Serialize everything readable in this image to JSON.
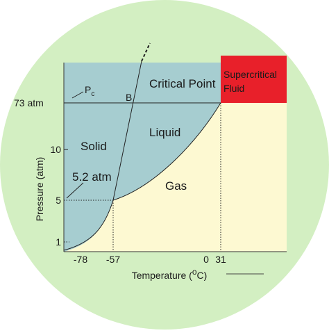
{
  "diagram": {
    "regions": {
      "solid": "Solid",
      "liquid": "Liquid",
      "gas": "Gas",
      "supercritical_line1": "Supercritical",
      "supercritical_line2": "Fluid"
    },
    "annotations": {
      "critical_point": "Critical Point",
      "b": "B",
      "pc_main": "P",
      "pc_sub": "c",
      "triple_pressure": "5.2 atm",
      "critical_pressure": "73 atm"
    },
    "y_axis": {
      "label": "Pressure (atm)",
      "ticks": [
        "10",
        "5",
        "1"
      ]
    },
    "x_axis": {
      "label_pre": "Temperature (",
      "label_sup": "o",
      "label_post": "C)",
      "ticks": [
        "-78",
        "-57",
        "0",
        "31"
      ]
    }
  }
}
